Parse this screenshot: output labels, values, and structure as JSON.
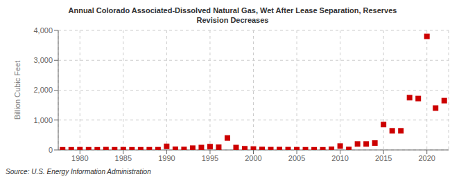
{
  "chart_data": {
    "type": "scatter",
    "title": "Annual Colorado Associated-Dissolved Natural Gas, Wet After Lease Separation, Reserves\nRevision Decreases",
    "ylabel": "Billion Cubic Feet",
    "source": "Source: U.S. Energy Information Administration",
    "color": "#cc0000",
    "marker": "square",
    "grid": true,
    "xlim": [
      1977.5,
      2022.5
    ],
    "ylim": [
      0,
      4000
    ],
    "xticks": [
      1980,
      1985,
      1990,
      1995,
      2000,
      2005,
      2010,
      2015,
      2020
    ],
    "yticks": [
      0,
      {
        "value": 1000,
        "label": "1,000"
      },
      {
        "value": 2000,
        "label": "2,000"
      },
      {
        "value": 3000,
        "label": "3,000"
      },
      {
        "value": 4000,
        "label": "4,000"
      }
    ],
    "x": [
      1978,
      1979,
      1980,
      1981,
      1982,
      1983,
      1984,
      1985,
      1986,
      1987,
      1988,
      1989,
      1990,
      1991,
      1992,
      1993,
      1994,
      1995,
      1996,
      1997,
      1998,
      1999,
      2000,
      2001,
      2002,
      2003,
      2004,
      2005,
      2006,
      2007,
      2008,
      2009,
      2010,
      2011,
      2012,
      2013,
      2014,
      2015,
      2016,
      2017,
      2018,
      2019,
      2020,
      2021,
      2022
    ],
    "values": [
      5,
      5,
      8,
      6,
      5,
      10,
      6,
      8,
      5,
      6,
      7,
      8,
      120,
      20,
      15,
      60,
      80,
      110,
      90,
      400,
      80,
      40,
      30,
      15,
      10,
      12,
      10,
      8,
      6,
      5,
      5,
      20,
      130,
      15,
      200,
      200,
      230,
      850,
      640,
      640,
      1750,
      1720,
      3800,
      1400,
      1650
    ]
  }
}
